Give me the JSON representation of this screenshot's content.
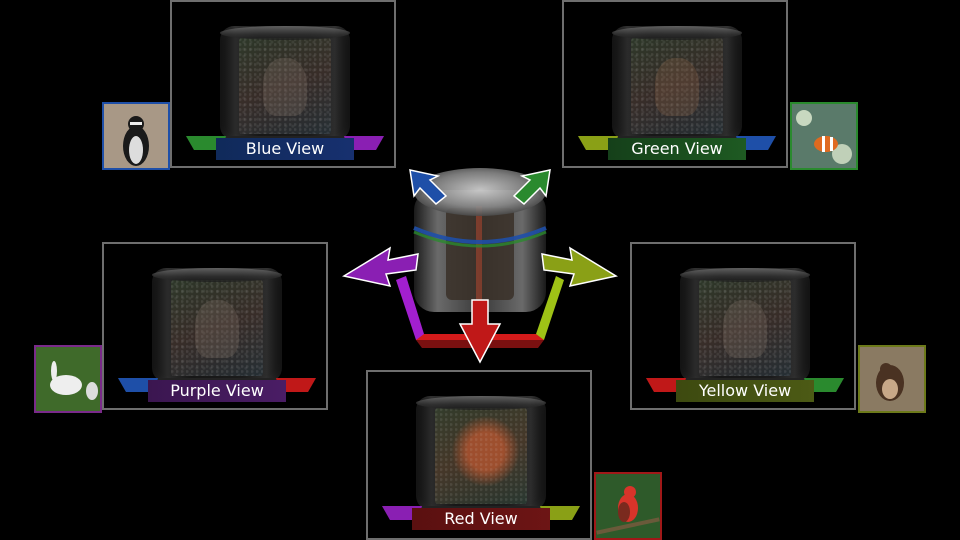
{
  "views": [
    {
      "id": "blue",
      "label": "Blue View",
      "color": "#1e4fa8"
    },
    {
      "id": "green",
      "label": "Green View",
      "color": "#2a8a2e"
    },
    {
      "id": "purple",
      "label": "Purple View",
      "color": "#8a1fb3"
    },
    {
      "id": "yellow",
      "label": "Yellow View",
      "color": "#8aa016"
    },
    {
      "id": "red",
      "label": "Red View",
      "color": "#c01818"
    }
  ],
  "thumbnails": [
    {
      "view": "blue",
      "subject": "penguin",
      "border": "#1e4fa8"
    },
    {
      "view": "green",
      "subject": "clownfish",
      "border": "#2a8a2e"
    },
    {
      "view": "purple",
      "subject": "rabbit",
      "border": "#7a2a8a"
    },
    {
      "view": "yellow",
      "subject": "squirrel",
      "border": "#6d7a1a"
    },
    {
      "view": "red",
      "subject": "bird",
      "border": "#a01818"
    }
  ]
}
